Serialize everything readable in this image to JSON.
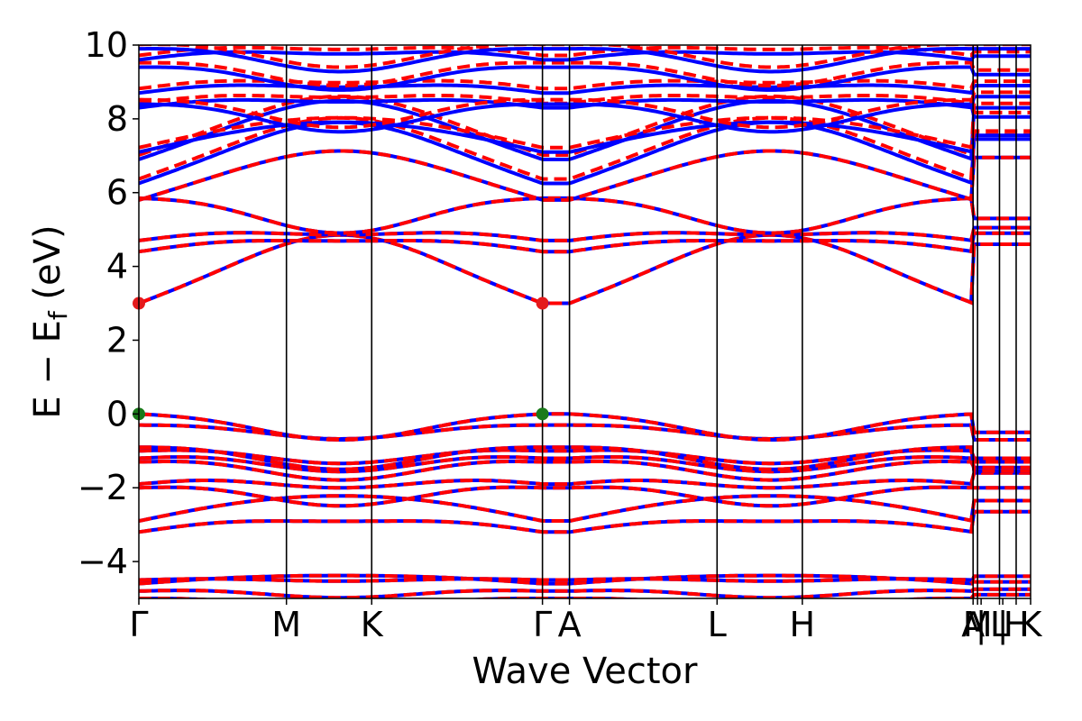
{
  "chart_data": {
    "type": "line",
    "xlabel": "Wave Vector",
    "ylabel": "E − E",
    "ylabel_sub": "f",
    "ylabel_unit": " (eV)",
    "ylim": [
      -5,
      10
    ],
    "yticks": [
      -4,
      -2,
      0,
      2,
      4,
      6,
      8,
      10
    ],
    "ytick_labels": [
      "−4",
      "−2",
      "0",
      "2",
      "4",
      "6",
      "8",
      "10"
    ],
    "xlim": [
      0,
      1
    ],
    "kpoints": [
      {
        "label": "Γ",
        "x": 0.0
      },
      {
        "label": "M",
        "x": 0.1655
      },
      {
        "label": "K",
        "x": 0.2611
      },
      {
        "label": "Γ",
        "x": 0.4526
      },
      {
        "label": "A",
        "x": 0.4829
      },
      {
        "label": "L",
        "x": 0.6484
      },
      {
        "label": "H",
        "x": 0.744
      },
      {
        "label": "A",
        "x": 0.9355
      },
      {
        "label": "M",
        "x": 0.9405
      },
      {
        "label": "|",
        "x": 0.9445
      },
      {
        "label": "L",
        "x": 0.9651
      },
      {
        "label": "|",
        "x": 0.9688
      },
      {
        "label": "H",
        "x": 0.9838
      },
      {
        "label": "K",
        "x": 1.0
      }
    ],
    "band_markers": [
      {
        "name": "cbm",
        "x": [
          0.0,
          0.4526
        ],
        "y": [
          3.0,
          3.0
        ],
        "color": "#e41a1c"
      },
      {
        "name": "vbm",
        "x": [
          0.0,
          0.4526
        ],
        "y": [
          0.0,
          0.0
        ],
        "color": "#1a7a1a"
      }
    ],
    "series": [
      {
        "style": "solid",
        "color": "#0000ff"
      },
      {
        "style": "dashed",
        "color": "#ff0000"
      }
    ]
  }
}
